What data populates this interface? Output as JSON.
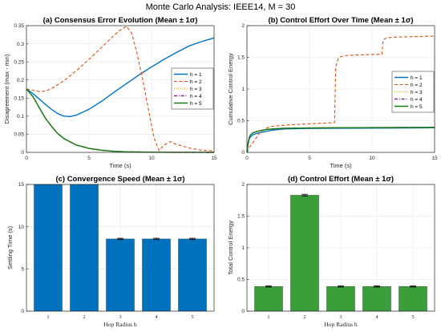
{
  "figure_title": "Monte Carlo Analysis: IEEE14, M = 30",
  "chart_data": [
    {
      "type": "line",
      "title": "(a) Consensus Error Evolution (Mean ± 1σ)",
      "xlabel": "Time (s)",
      "ylabel": "Disagreement (max - min)",
      "xlim": [
        0,
        15
      ],
      "ylim": [
        0,
        0.35
      ],
      "xticks": [
        0,
        5,
        10,
        15
      ],
      "yticks": [
        0,
        0.05,
        0.1,
        0.15,
        0.2,
        0.25,
        0.3,
        0.35
      ],
      "ytick_labels": [
        "0",
        "0.05",
        "0.1",
        "0.15",
        "0.2",
        "0.25",
        "0.3",
        "0.35"
      ],
      "grid": true,
      "legend_position": "right",
      "series": [
        {
          "name": "h = 1",
          "color": "#0072BD",
          "dash": "solid",
          "x": [
            0,
            0.5,
            1,
            1.5,
            2,
            2.5,
            3,
            3.5,
            4,
            5,
            6,
            7,
            8,
            9,
            10,
            11,
            12,
            13,
            14,
            15
          ],
          "y": [
            0.175,
            0.163,
            0.148,
            0.133,
            0.119,
            0.107,
            0.1,
            0.099,
            0.103,
            0.119,
            0.141,
            0.166,
            0.19,
            0.214,
            0.236,
            0.257,
            0.276,
            0.294,
            0.306,
            0.316
          ]
        },
        {
          "name": "h = 2",
          "color": "#D95319",
          "dash": "dashed",
          "x": [
            0,
            0.5,
            1,
            1.5,
            2,
            3,
            4,
            5,
            6,
            7,
            7.5,
            8,
            8.4,
            8.8,
            9.3,
            9.8,
            10.2,
            10.6,
            11,
            11.5,
            12,
            13,
            14,
            15
          ],
          "y": [
            0.175,
            0.172,
            0.168,
            0.169,
            0.176,
            0.198,
            0.226,
            0.257,
            0.29,
            0.323,
            0.338,
            0.348,
            0.33,
            0.28,
            0.2,
            0.11,
            0.04,
            0.005,
            0.02,
            0.03,
            0.022,
            0.012,
            0.006,
            0.004
          ]
        },
        {
          "name": "h = 3",
          "color": "#EDB120",
          "dash": "dotted",
          "x": [
            0,
            0.5,
            1,
            1.5,
            2,
            2.5,
            3,
            4,
            5,
            6,
            7,
            8,
            10,
            12,
            15
          ],
          "y": [
            0.175,
            0.155,
            0.125,
            0.095,
            0.072,
            0.052,
            0.038,
            0.02,
            0.011,
            0.006,
            0.003,
            0.0015,
            0.0005,
            0.0002,
            0
          ]
        },
        {
          "name": "h = 4",
          "color": "#7E2F8E",
          "dash": "dashdot",
          "x": [
            0,
            0.5,
            1,
            1.5,
            2,
            2.5,
            3,
            4,
            5,
            6,
            7,
            8,
            10,
            12,
            15
          ],
          "y": [
            0.175,
            0.155,
            0.125,
            0.095,
            0.072,
            0.052,
            0.038,
            0.02,
            0.011,
            0.006,
            0.003,
            0.0015,
            0.0005,
            0.0002,
            0
          ]
        },
        {
          "name": "h = 5",
          "color": "#137A13",
          "dash": "solid",
          "x": [
            0,
            0.5,
            1,
            1.5,
            2,
            2.5,
            3,
            4,
            5,
            6,
            7,
            8,
            10,
            12,
            15
          ],
          "y": [
            0.175,
            0.155,
            0.125,
            0.095,
            0.072,
            0.052,
            0.038,
            0.02,
            0.011,
            0.006,
            0.003,
            0.0015,
            0.0005,
            0.0002,
            0
          ]
        }
      ]
    },
    {
      "type": "line",
      "title": "(b) Control Effort Over Time (Mean ± 1σ)",
      "xlabel": "Time (s)",
      "ylabel": "Cumulative Control Energy",
      "xlim": [
        0,
        15
      ],
      "ylim": [
        0,
        2
      ],
      "xticks": [
        0,
        5,
        10,
        15
      ],
      "yticks": [
        0,
        0.5,
        1,
        1.5,
        2
      ],
      "ytick_labels": [
        "0",
        "0.5",
        "1",
        "1.5",
        "2"
      ],
      "grid": true,
      "legend_position": "right",
      "series": [
        {
          "name": "h = 1",
          "color": "#0072BD",
          "dash": "solid",
          "x": [
            0,
            0.1,
            0.2,
            0.3,
            0.5,
            0.8,
            1,
            1.5,
            2,
            3,
            4,
            5,
            7,
            9,
            11,
            13,
            15
          ],
          "y": [
            0,
            0.15,
            0.22,
            0.25,
            0.28,
            0.3,
            0.31,
            0.33,
            0.35,
            0.37,
            0.375,
            0.378,
            0.38,
            0.382,
            0.384,
            0.386,
            0.388
          ]
        },
        {
          "name": "h = 2",
          "color": "#D95319",
          "dash": "dashed",
          "x": [
            0,
            0.2,
            0.5,
            1,
            1.5,
            2,
            3,
            4,
            5,
            6,
            7,
            7.05,
            7.1,
            7.3,
            7.5,
            8,
            9,
            10,
            10.8,
            10.85,
            10.9,
            11.2,
            12,
            13,
            14,
            15
          ],
          "y": [
            0,
            0.08,
            0.16,
            0.3,
            0.38,
            0.41,
            0.43,
            0.44,
            0.45,
            0.46,
            0.47,
            0.9,
            1.35,
            1.48,
            1.51,
            1.53,
            1.54,
            1.545,
            1.55,
            1.7,
            1.78,
            1.81,
            1.82,
            1.825,
            1.83,
            1.835
          ]
        },
        {
          "name": "h = 3",
          "color": "#EDB120",
          "dash": "dotted",
          "x": [
            0,
            0.1,
            0.2,
            0.3,
            0.5,
            0.8,
            1,
            1.5,
            2,
            3,
            5,
            7,
            9,
            11,
            13,
            15
          ],
          "y": [
            0,
            0.16,
            0.24,
            0.28,
            0.31,
            0.33,
            0.34,
            0.36,
            0.37,
            0.38,
            0.385,
            0.388,
            0.39,
            0.392,
            0.393,
            0.394
          ]
        },
        {
          "name": "h = 4",
          "color": "#7E2F8E",
          "dash": "dashdot",
          "x": [
            0,
            0.1,
            0.2,
            0.3,
            0.5,
            0.8,
            1,
            1.5,
            2,
            3,
            5,
            7,
            9,
            11,
            13,
            15
          ],
          "y": [
            0,
            0.16,
            0.24,
            0.28,
            0.31,
            0.33,
            0.34,
            0.36,
            0.37,
            0.38,
            0.385,
            0.388,
            0.39,
            0.392,
            0.393,
            0.394
          ]
        },
        {
          "name": "h = 5",
          "color": "#137A13",
          "dash": "solid",
          "x": [
            0,
            0.1,
            0.2,
            0.3,
            0.5,
            0.8,
            1,
            1.5,
            2,
            3,
            5,
            7,
            9,
            11,
            13,
            15
          ],
          "y": [
            0,
            0.16,
            0.24,
            0.28,
            0.31,
            0.33,
            0.34,
            0.36,
            0.37,
            0.38,
            0.385,
            0.388,
            0.39,
            0.392,
            0.393,
            0.394
          ]
        }
      ]
    },
    {
      "type": "bar",
      "title": "(c) Convergence Speed (Mean ± 1σ)",
      "xlabel": "Hop Radius h",
      "ylabel": "Settling Time (s)",
      "categories": [
        "1",
        "2",
        "3",
        "4",
        "5"
      ],
      "values": [
        15,
        15,
        8.55,
        8.55,
        8.55
      ],
      "errors": [
        0,
        0,
        0.08,
        0.08,
        0.08
      ],
      "ylim": [
        0,
        15
      ],
      "yticks": [
        0,
        5,
        10,
        15
      ],
      "ytick_labels": [
        "0",
        "5",
        "10",
        "15"
      ],
      "bar_color": "#0072BD",
      "grid": true
    },
    {
      "type": "bar",
      "title": "(d) Control Effort (Mean ± 1σ)",
      "xlabel": "Hop Radius h",
      "ylabel": "Total Control Energy",
      "categories": [
        "1",
        "2",
        "3",
        "4",
        "5"
      ],
      "values": [
        0.39,
        1.83,
        0.39,
        0.39,
        0.39
      ],
      "errors": [
        0.01,
        0.015,
        0.01,
        0.01,
        0.01
      ],
      "ylim": [
        0,
        2
      ],
      "yticks": [
        0,
        0.5,
        1,
        1.5,
        2
      ],
      "ytick_labels": [
        "0",
        "0.5",
        "1",
        "1.5",
        "2"
      ],
      "bar_color": "#3A9E3A",
      "grid": true
    }
  ]
}
